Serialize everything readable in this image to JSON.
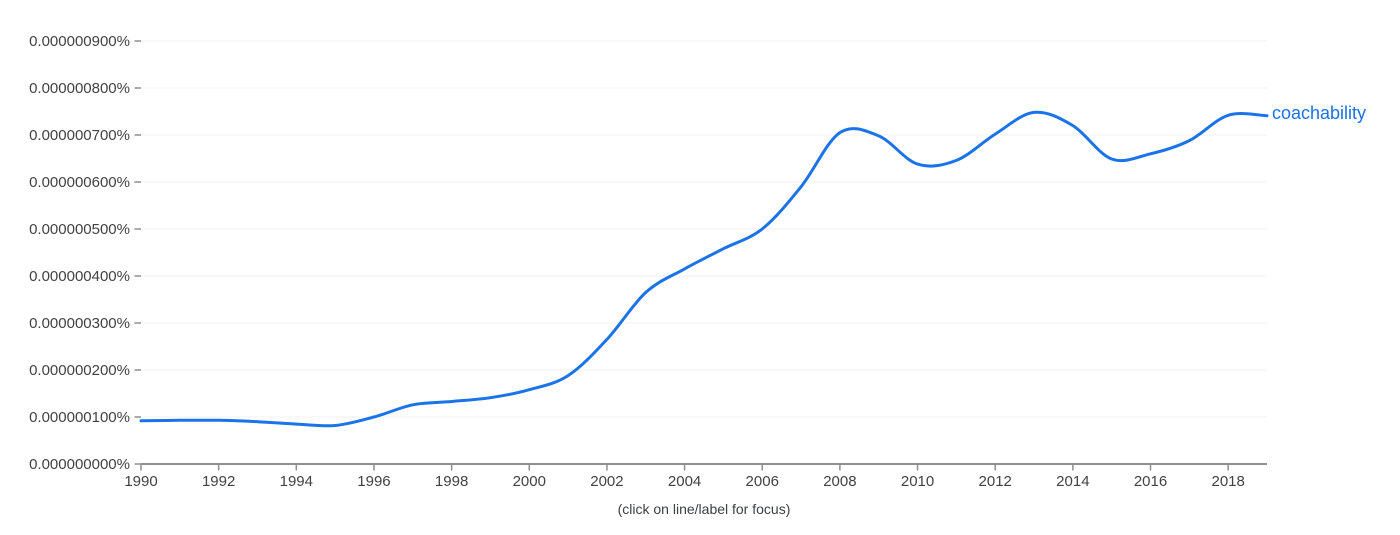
{
  "chart_data": {
    "type": "line",
    "title": "",
    "xlabel": "",
    "ylabel": "",
    "caption": "(click on line/label for focus)",
    "value_unit": "percent x 1e-9 (axis shows e.g. 0.000000100%)",
    "x_range": [
      1990,
      2019
    ],
    "xticks": [
      1990,
      1992,
      1994,
      1996,
      1998,
      2000,
      2002,
      2004,
      2006,
      2008,
      2010,
      2012,
      2014,
      2016,
      2018
    ],
    "yticks": [
      {
        "value": 0,
        "label": "0.000000000%"
      },
      {
        "value": 100,
        "label": "0.000000100%"
      },
      {
        "value": 200,
        "label": "0.000000200%"
      },
      {
        "value": 300,
        "label": "0.000000300%"
      },
      {
        "value": 400,
        "label": "0.000000400%"
      },
      {
        "value": 500,
        "label": "0.000000500%"
      },
      {
        "value": 600,
        "label": "0.000000600%"
      },
      {
        "value": 700,
        "label": "0.000000700%"
      },
      {
        "value": 800,
        "label": "0.000000800%"
      },
      {
        "value": 900,
        "label": "0.000000900%"
      }
    ],
    "grid": true,
    "legend_position": "line-end",
    "series": [
      {
        "name": "coachability",
        "color": "#1a73e8",
        "x": [
          1990,
          1991,
          1992,
          1993,
          1994,
          1995,
          1996,
          1997,
          1998,
          1999,
          2000,
          2001,
          2002,
          2003,
          2004,
          2005,
          2006,
          2007,
          2008,
          2009,
          2010,
          2011,
          2012,
          2013,
          2014,
          2015,
          2016,
          2017,
          2018,
          2019
        ],
        "values": [
          92,
          93,
          93,
          90,
          85,
          82,
          100,
          126,
          133,
          141,
          158,
          188,
          265,
          365,
          415,
          458,
          500,
          590,
          705,
          698,
          638,
          646,
          702,
          748,
          720,
          649,
          660,
          688,
          742,
          741
        ]
      }
    ]
  },
  "colors": {
    "axis": "#8f8f8f",
    "tick": "#8f8f8f",
    "grid": "#f2f2f2",
    "tick_label": "#424242",
    "caption": "#3c4043"
  }
}
